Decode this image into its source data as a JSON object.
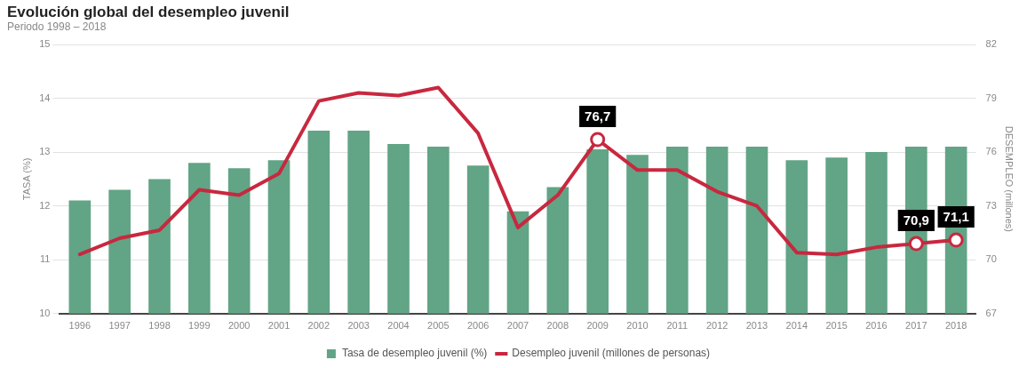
{
  "chart_data": {
    "type": "bar",
    "title": "Evolución global del desempleo juvenil",
    "subtitle": "Periodo 1998 – 2018",
    "categories": [
      "1996",
      "1997",
      "1998",
      "1999",
      "2000",
      "2001",
      "2002",
      "2003",
      "2004",
      "2005",
      "2006",
      "2007",
      "2008",
      "2009",
      "2010",
      "2011",
      "2012",
      "2013",
      "2014",
      "2015",
      "2016",
      "2017",
      "2018"
    ],
    "series": [
      {
        "name": "Tasa de desempleo juvenil (%)",
        "color": "#62a486",
        "values": [
          12.1,
          12.3,
          12.5,
          12.8,
          12.7,
          12.85,
          13.4,
          13.4,
          13.15,
          13.1,
          12.75,
          11.9,
          12.35,
          13.05,
          12.95,
          13.1,
          13.1,
          13.1,
          12.85,
          12.9,
          13.0,
          13.1,
          13.1
        ]
      },
      {
        "name": "Desempleo juvenil (millones de personas)",
        "type": "line",
        "axis": "y2",
        "color": "#c8283f",
        "values": [
          70.3,
          71.2,
          71.65,
          73.9,
          73.6,
          74.8,
          78.85,
          79.3,
          79.15,
          79.6,
          77.05,
          71.8,
          73.6,
          76.7,
          75.0,
          75.0,
          73.8,
          73.0,
          70.4,
          70.3,
          70.7,
          70.9,
          71.1
        ],
        "value_labels": [
          null,
          null,
          null,
          null,
          null,
          null,
          null,
          null,
          null,
          null,
          null,
          null,
          null,
          "76,7",
          null,
          null,
          null,
          null,
          null,
          null,
          null,
          "70,9",
          "71,1"
        ]
      }
    ],
    "ylabel": "TASA (%)",
    "y2label": "DESEMPLEO (millones)",
    "ylim": [
      10,
      15
    ],
    "yticks": [
      10,
      11,
      12,
      13,
      14,
      15
    ],
    "y2lim": [
      67,
      82
    ],
    "y2ticks": [
      67,
      70,
      73,
      76,
      79,
      82
    ],
    "grid": "y",
    "legend": "bottom",
    "line_style": "solid"
  }
}
